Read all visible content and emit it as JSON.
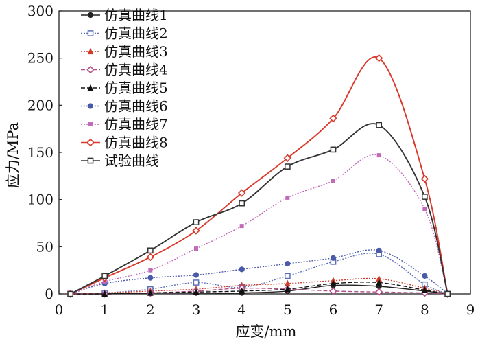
{
  "chart_data": {
    "type": "line",
    "title": "",
    "xlabel": "应变/mm",
    "ylabel": "应力/MPa",
    "xlim": [
      0,
      9
    ],
    "ylim": [
      0,
      300
    ],
    "xticks": [
      0,
      1,
      2,
      3,
      4,
      5,
      6,
      7,
      8,
      9
    ],
    "yticks": [
      0,
      50,
      100,
      150,
      200,
      250,
      300
    ],
    "grid": false,
    "legend_position": "top-left",
    "series": [
      {
        "name": "仿真曲线1",
        "color": "#222222",
        "marker": "circle",
        "dash": "solid",
        "x": [
          0.25,
          1,
          2,
          3,
          4,
          5,
          6,
          7,
          8,
          8.5
        ],
        "y": [
          0,
          0,
          1,
          1,
          1,
          3,
          9,
          8,
          3,
          0
        ]
      },
      {
        "name": "仿真曲线2",
        "color": "#5b6fb5",
        "marker": "square",
        "dash": "dotted",
        "x": [
          0.25,
          1,
          2,
          3,
          4,
          5,
          6,
          7,
          8,
          8.5
        ],
        "y": [
          0,
          1,
          5,
          12,
          7,
          19,
          34,
          42,
          10,
          0
        ]
      },
      {
        "name": "仿真曲线3",
        "color": "#d23a2a",
        "marker": "triangle",
        "dash": "dotted",
        "x": [
          0.25,
          1,
          2,
          3,
          4,
          5,
          6,
          7,
          8,
          8.5
        ],
        "y": [
          0,
          1,
          3,
          5,
          9,
          11,
          14,
          16,
          6,
          0
        ]
      },
      {
        "name": "仿真曲线4",
        "color": "#b0508a",
        "marker": "diamond",
        "dash": "dashed",
        "x": [
          0.25,
          1,
          2,
          3,
          4,
          5,
          6,
          7,
          8,
          8.5
        ],
        "y": [
          0,
          0,
          1,
          3,
          6,
          5,
          3,
          2,
          1,
          0
        ]
      },
      {
        "name": "仿真曲线5",
        "color": "#111111",
        "marker": "triangle",
        "dash": "dashed",
        "x": [
          0.25,
          1,
          2,
          3,
          4,
          5,
          6,
          7,
          8,
          8.5
        ],
        "y": [
          0,
          0,
          1,
          2,
          3,
          5,
          11,
          12,
          4,
          0
        ]
      },
      {
        "name": "仿真曲线6",
        "color": "#4a5aa8",
        "marker": "circle",
        "dash": "dotted",
        "x": [
          0.25,
          1,
          2,
          3,
          4,
          5,
          6,
          7,
          8,
          8.5
        ],
        "y": [
          0,
          11,
          17,
          20,
          26,
          32,
          38,
          46,
          19,
          0
        ]
      },
      {
        "name": "仿真曲线7",
        "color": "#c06ab8",
        "marker": "star",
        "dash": "dotted",
        "x": [
          0.25,
          1,
          2,
          3,
          4,
          5,
          6,
          7,
          8,
          8.5
        ],
        "y": [
          0,
          13,
          25,
          48,
          72,
          102,
          120,
          147,
          90,
          0
        ]
      },
      {
        "name": "仿真曲线8",
        "color": "#d9382a",
        "marker": "diamond",
        "dash": "solid",
        "x": [
          0.25,
          1,
          2,
          3,
          4,
          5,
          6,
          7,
          8,
          8.5
        ],
        "y": [
          0,
          17,
          39,
          67,
          107,
          144,
          186,
          250,
          122,
          0
        ]
      },
      {
        "name": "试验曲线",
        "color": "#333333",
        "marker": "square",
        "dash": "solid",
        "x": [
          0.25,
          1,
          2,
          3,
          4,
          5,
          6,
          7,
          8,
          8.5
        ],
        "y": [
          0,
          19,
          46,
          76,
          96,
          135,
          153,
          179,
          103,
          0
        ]
      }
    ]
  }
}
